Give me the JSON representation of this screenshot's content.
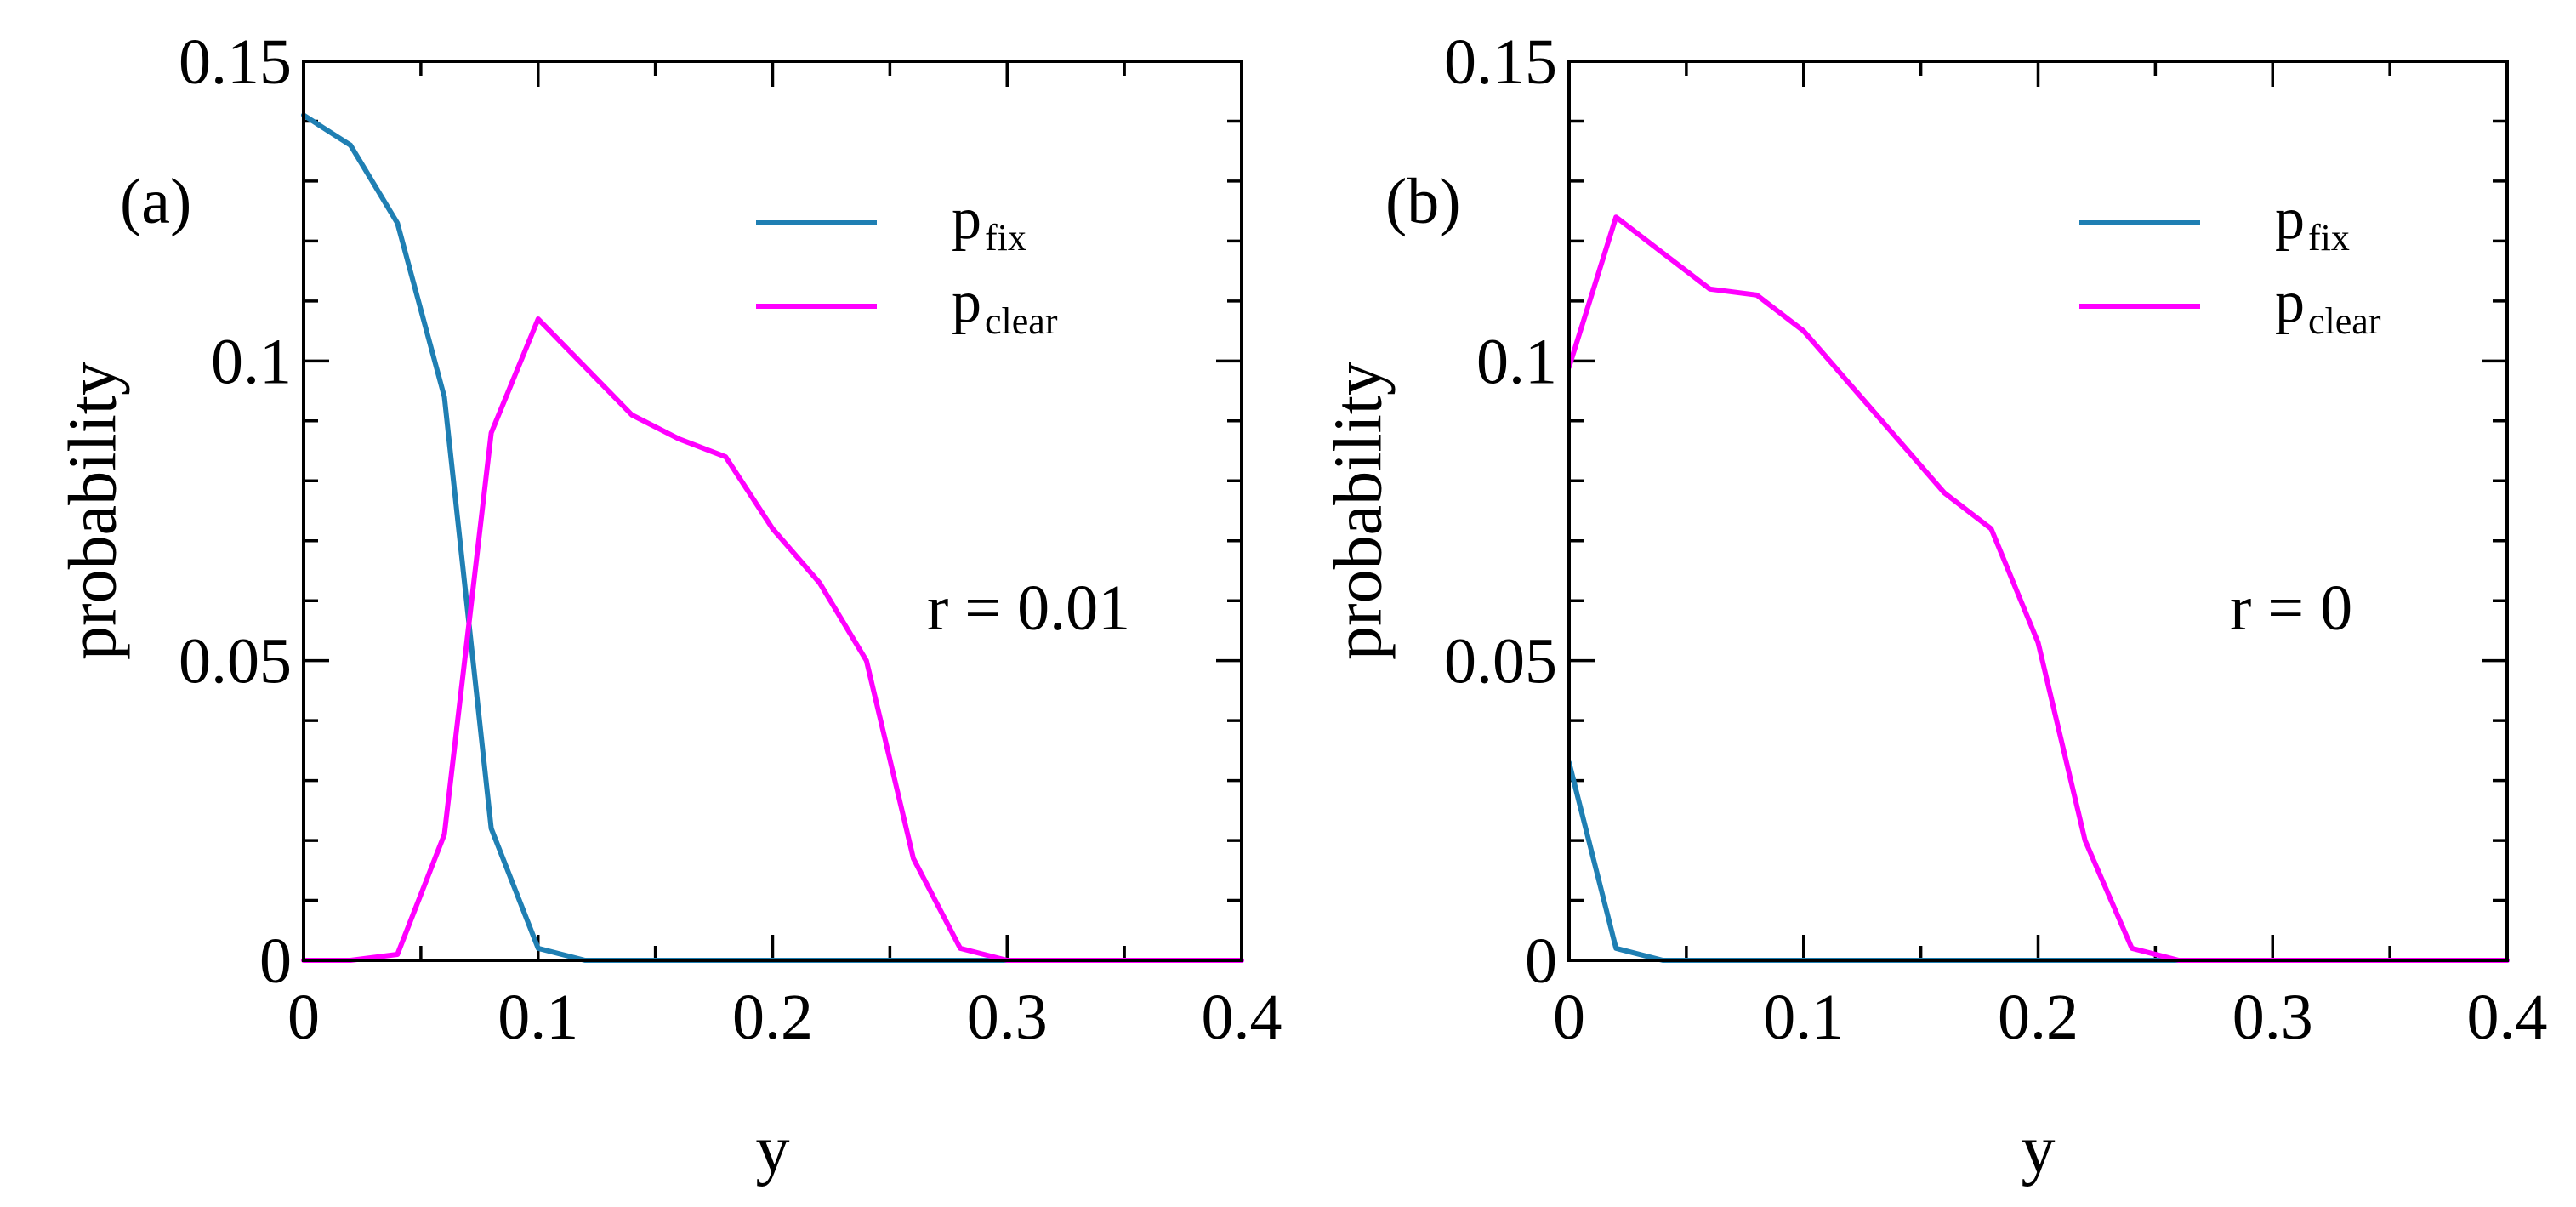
{
  "colors": {
    "p_fix": "#1f7fb3",
    "p_clear": "#ff00ff",
    "axes": "#000000",
    "background": "#ffffff"
  },
  "chart_data": [
    {
      "type": "line",
      "panel_label": "(a)",
      "annotation": "r = 0.01",
      "xlabel": "y",
      "ylabel": "probability",
      "xlim": [
        0,
        0.4
      ],
      "ylim": [
        0,
        0.15
      ],
      "xticks": [
        "0",
        "0.1",
        "0.2",
        "0.3",
        "0.4"
      ],
      "yticks": [
        "0",
        "0.05",
        "0.1",
        "0.15"
      ],
      "grid": false,
      "legend_position": "top-right",
      "series": [
        {
          "key": "p_fix",
          "name": "p",
          "name_sub": "fix",
          "x": [
            0,
            0.02,
            0.04,
            0.06,
            0.08,
            0.1,
            0.12,
            0.14,
            0.16,
            0.18,
            0.2,
            0.22,
            0.24,
            0.26,
            0.28,
            0.3,
            0.32,
            0.34,
            0.36,
            0.38,
            0.4
          ],
          "y": [
            0.141,
            0.136,
            0.123,
            0.094,
            0.022,
            0.002,
            0,
            0,
            0,
            0,
            0,
            0,
            0,
            0,
            0,
            0,
            0,
            0,
            0,
            0,
            0
          ]
        },
        {
          "key": "p_clear",
          "name": "p",
          "name_sub": "clear",
          "x": [
            0,
            0.02,
            0.04,
            0.06,
            0.08,
            0.1,
            0.12,
            0.14,
            0.16,
            0.18,
            0.2,
            0.22,
            0.24,
            0.26,
            0.28,
            0.3,
            0.32,
            0.34,
            0.36,
            0.38,
            0.4
          ],
          "y": [
            0,
            0,
            0.001,
            0.021,
            0.088,
            0.107,
            0.099,
            0.091,
            0.087,
            0.084,
            0.072,
            0.063,
            0.05,
            0.017,
            0.002,
            0,
            0,
            0,
            0,
            0,
            0
          ]
        }
      ]
    },
    {
      "type": "line",
      "panel_label": "(b)",
      "annotation": "r = 0",
      "xlabel": "y",
      "ylabel": "probability",
      "xlim": [
        0,
        0.4
      ],
      "ylim": [
        0,
        0.15
      ],
      "xticks": [
        "0",
        "0.1",
        "0.2",
        "0.3",
        "0.4"
      ],
      "yticks": [
        "0",
        "0.05",
        "0.1",
        "0.15"
      ],
      "grid": false,
      "legend_position": "top-right",
      "series": [
        {
          "key": "p_fix",
          "name": "p",
          "name_sub": "fix",
          "x": [
            0,
            0.02,
            0.04,
            0.06,
            0.08,
            0.1,
            0.12,
            0.14,
            0.16,
            0.18,
            0.2,
            0.22,
            0.24,
            0.26,
            0.28,
            0.3,
            0.32,
            0.34,
            0.36,
            0.38,
            0.4
          ],
          "y": [
            0.033,
            0.002,
            0,
            0,
            0,
            0,
            0,
            0,
            0,
            0,
            0,
            0,
            0,
            0,
            0,
            0,
            0,
            0,
            0,
            0,
            0
          ]
        },
        {
          "key": "p_clear",
          "name": "p",
          "name_sub": "clear",
          "x": [
            0,
            0.02,
            0.04,
            0.06,
            0.08,
            0.1,
            0.12,
            0.14,
            0.16,
            0.18,
            0.2,
            0.22,
            0.24,
            0.26,
            0.28,
            0.3,
            0.32,
            0.34,
            0.36,
            0.38,
            0.4
          ],
          "y": [
            0.099,
            0.124,
            0.118,
            0.112,
            0.111,
            0.105,
            0.096,
            0.087,
            0.078,
            0.072,
            0.053,
            0.02,
            0.002,
            0,
            0,
            0,
            0,
            0,
            0,
            0,
            0
          ]
        }
      ]
    }
  ]
}
